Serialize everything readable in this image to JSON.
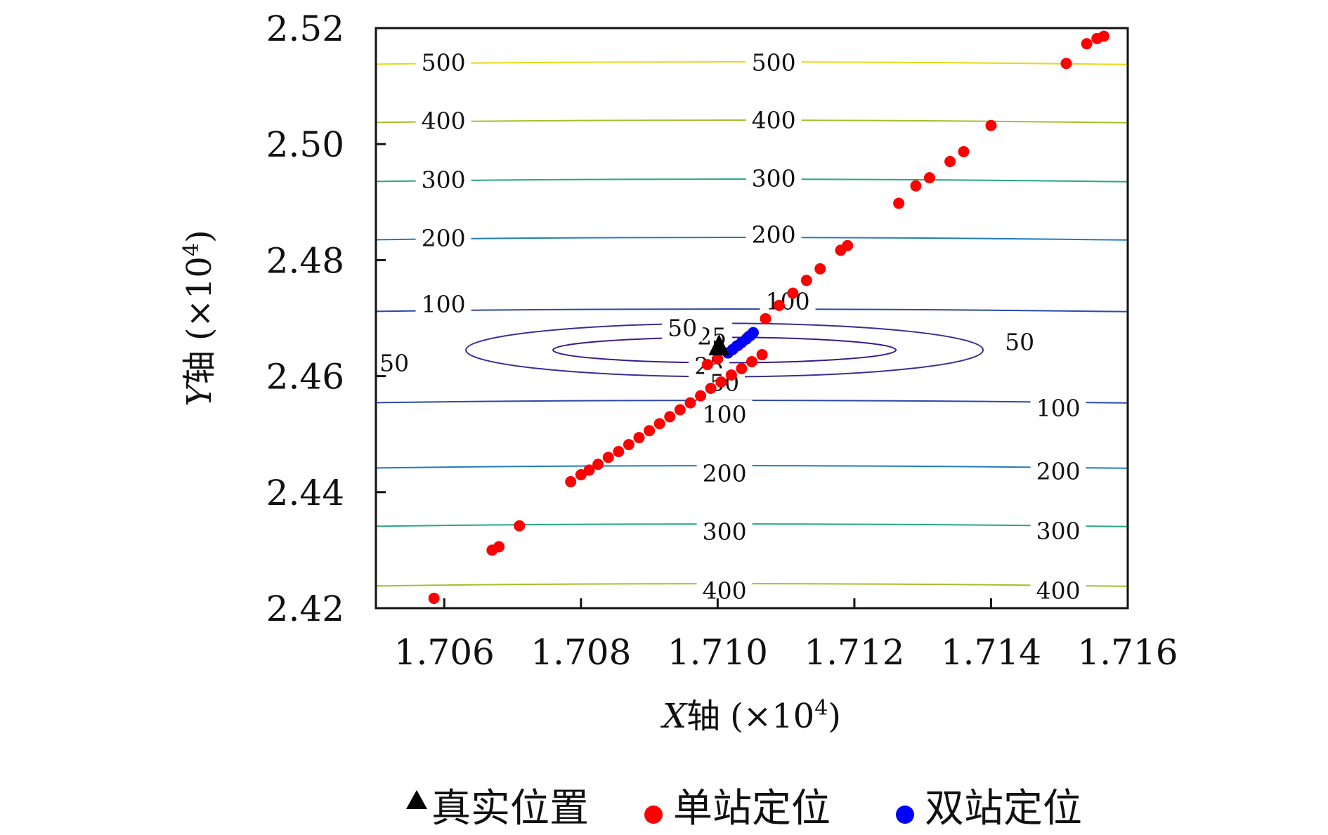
{
  "chart_data": {
    "type": "scatter",
    "xlabel": {
      "axis_letter": "X",
      "axis_word": "轴",
      "scale": "(×10",
      "exp": "4",
      "close": ")"
    },
    "ylabel": {
      "axis_letter": "Y",
      "axis_word": "轴",
      "scale": "(×10",
      "exp": "4",
      "close": ")"
    },
    "xlim": [
      1.705,
      1.716
    ],
    "ylim": [
      2.42,
      2.52
    ],
    "x_ticks": [
      1.706,
      1.708,
      1.71,
      1.712,
      1.714,
      1.716
    ],
    "x_tick_labels": [
      "1.706",
      "1.708",
      "1.710",
      "1.712",
      "1.714",
      "1.716"
    ],
    "y_ticks": [
      2.42,
      2.44,
      2.46,
      2.48,
      2.5,
      2.52
    ],
    "y_tick_labels": [
      "2.42",
      "2.44",
      "2.46",
      "2.48",
      "2.50",
      "2.52"
    ],
    "grid": false,
    "legend_position": "bottom",
    "contours": {
      "center": [
        1.7101,
        2.4645
      ],
      "levels": [
        {
          "level": 25,
          "label": "25",
          "color": "#3b1a8a"
        },
        {
          "level": 50,
          "label": "50",
          "color": "#3e2c96"
        },
        {
          "level": 100,
          "label": "100",
          "color": "#2c48a6"
        },
        {
          "level": 200,
          "label": "200",
          "color": "#1f7bc0"
        },
        {
          "level": 300,
          "label": "300",
          "color": "#27a884"
        },
        {
          "level": 400,
          "label": "400",
          "color": "#a8be2a"
        },
        {
          "level": 500,
          "label": "500",
          "color": "#e8d812"
        }
      ]
    },
    "series": [
      {
        "name": "真实位置",
        "marker": "triangle",
        "color": "#000000",
        "points": [
          [
            1.71002,
            2.4653
          ]
        ]
      },
      {
        "name": "单站定位",
        "marker": "circle",
        "color": "#ff0000",
        "points": [
          [
            1.70585,
            2.4217
          ],
          [
            1.7067,
            2.43
          ],
          [
            1.7068,
            2.4306
          ],
          [
            1.7071,
            2.4342
          ],
          [
            1.70785,
            2.4418
          ],
          [
            1.708,
            2.443
          ],
          [
            1.70812,
            2.4438
          ],
          [
            1.70825,
            2.4448
          ],
          [
            1.7084,
            2.446
          ],
          [
            1.70855,
            2.447
          ],
          [
            1.7087,
            2.4482
          ],
          [
            1.70885,
            2.4494
          ],
          [
            1.709,
            2.4506
          ],
          [
            1.70915,
            2.4518
          ],
          [
            1.7093,
            2.453
          ],
          [
            1.70945,
            2.4542
          ],
          [
            1.7096,
            2.4554
          ],
          [
            1.70975,
            2.4566
          ],
          [
            1.7099,
            2.4579
          ],
          [
            1.71005,
            2.459
          ],
          [
            1.7102,
            2.4602
          ],
          [
            1.71035,
            2.4613
          ],
          [
            1.7105,
            2.4625
          ],
          [
            1.71065,
            2.4637
          ],
          [
            1.70985,
            2.462
          ],
          [
            1.71,
            2.463
          ],
          [
            1.71015,
            2.464
          ],
          [
            1.7103,
            2.4653
          ],
          [
            1.71045,
            2.4668
          ],
          [
            1.7107,
            2.4699
          ],
          [
            1.7109,
            2.4722
          ],
          [
            1.7111,
            2.4743
          ],
          [
            1.7113,
            2.4765
          ],
          [
            1.7115,
            2.4785
          ],
          [
            1.7118,
            2.4817
          ],
          [
            1.7119,
            2.4825
          ],
          [
            1.71265,
            2.4898
          ],
          [
            1.7129,
            2.4928
          ],
          [
            1.7131,
            2.4942
          ],
          [
            1.7134,
            2.497
          ],
          [
            1.7136,
            2.4987
          ],
          [
            1.714,
            2.5032
          ],
          [
            1.7151,
            2.5139
          ],
          [
            1.7154,
            2.5173
          ],
          [
            1.71555,
            2.5182
          ],
          [
            1.71565,
            2.5186
          ]
        ]
      },
      {
        "name": "双站定位",
        "marker": "circle",
        "color": "#0000ff",
        "points": [
          [
            1.71015,
            2.464
          ],
          [
            1.71022,
            2.4646
          ],
          [
            1.71028,
            2.4652
          ],
          [
            1.71035,
            2.4658
          ],
          [
            1.71042,
            2.4664
          ],
          [
            1.71048,
            2.467
          ],
          [
            1.71052,
            2.4675
          ]
        ]
      }
    ]
  }
}
